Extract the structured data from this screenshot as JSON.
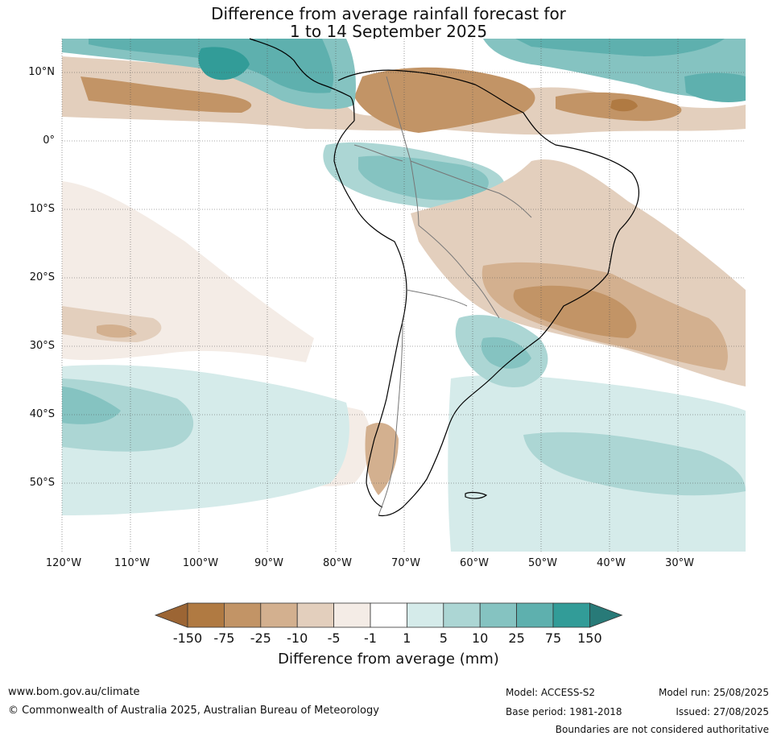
{
  "title": {
    "line1": "Difference from average rainfall forecast for",
    "line2": "1 to 14 September 2025"
  },
  "map": {
    "lat_ticks": [
      "10°N",
      "0°",
      "10°S",
      "20°S",
      "30°S",
      "40°S",
      "50°S"
    ],
    "lon_ticks": [
      "120°W",
      "110°W",
      "100°W",
      "90°W",
      "80°W",
      "70°W",
      "60°W",
      "50°W",
      "40°W",
      "30°W"
    ],
    "lat_range": [
      -60,
      15
    ],
    "lon_range": [
      -120,
      -20
    ]
  },
  "colorbar": {
    "labels": [
      "-150",
      "-75",
      "-25",
      "-10",
      "-5",
      "-1",
      "1",
      "5",
      "10",
      "25",
      "75",
      "150"
    ],
    "colors": [
      "#9c6534",
      "#b07a42",
      "#c29466",
      "#d3b08f",
      "#e3cfbd",
      "#f4ece6",
      "#ffffff",
      "#d5ebea",
      "#acd6d4",
      "#85c3c1",
      "#5eb0ae",
      "#329c98",
      "#287a78"
    ],
    "label": "Difference from average (mm)"
  },
  "footer": {
    "website": "www.bom.gov.au/climate",
    "copyright": "© Commonwealth of Australia 2025, Australian Bureau of Meteorology",
    "model": "Model: ACCESS-S2",
    "base_period": "Base period: 1981-2018",
    "model_run": "Model run: 25/08/2025",
    "issued": "Issued: 27/08/2025",
    "disclaimer": "Boundaries are not considered authoritative"
  }
}
